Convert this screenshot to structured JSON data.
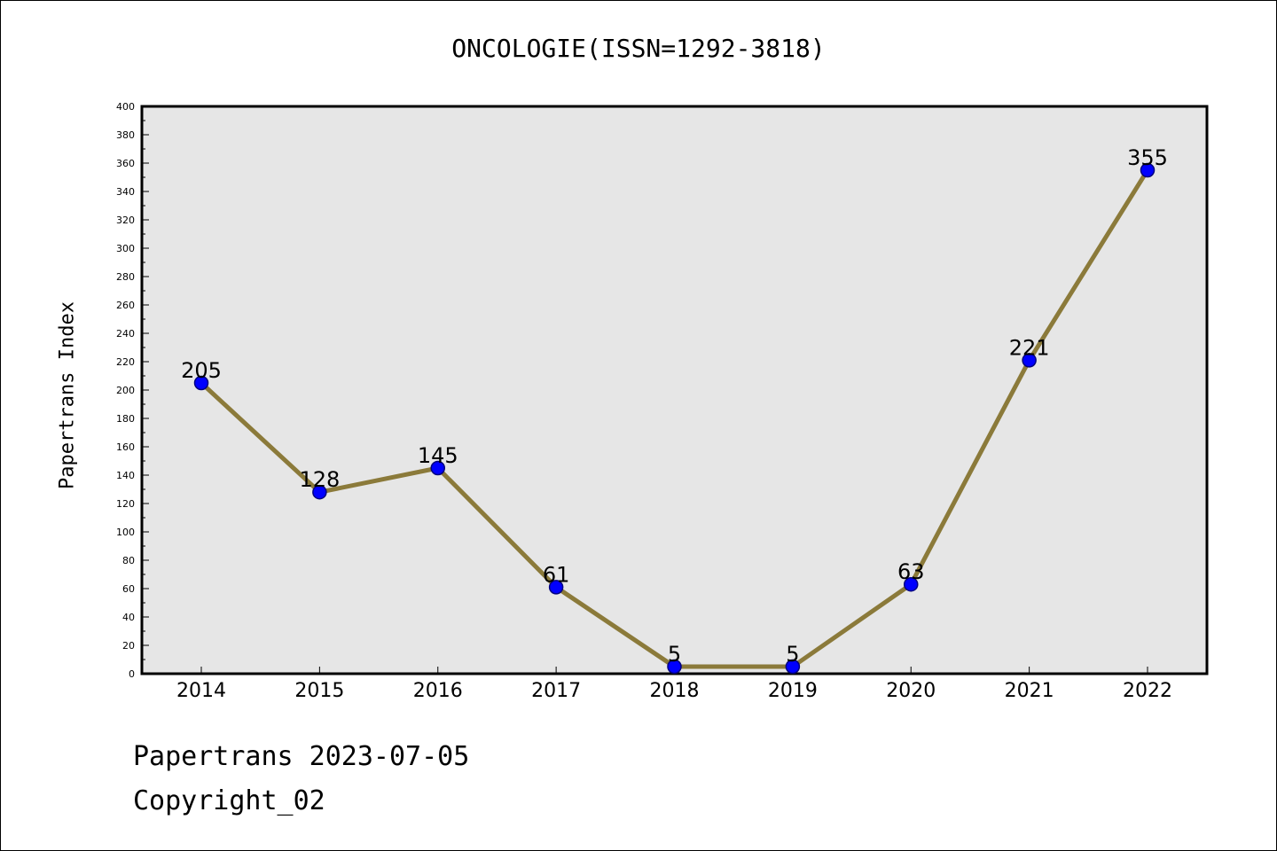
{
  "chart_data": {
    "type": "line",
    "title": "ONCOLOGIE(ISSN=1292-3818)",
    "xlabel": "",
    "ylabel": "Papertrans Index",
    "categories": [
      "2014",
      "2015",
      "2016",
      "2017",
      "2018",
      "2019",
      "2020",
      "2021",
      "2022"
    ],
    "values": [
      205,
      128,
      145,
      61,
      5,
      5,
      63,
      221,
      355
    ],
    "data_labels": [
      "205",
      "128",
      "145",
      "61",
      "5",
      "5",
      "63",
      "221",
      "355"
    ],
    "ylim": [
      0,
      400
    ],
    "y_ticks": [
      0,
      20,
      40,
      60,
      80,
      100,
      120,
      140,
      160,
      180,
      200,
      220,
      240,
      260,
      280,
      300,
      320,
      340,
      360,
      380,
      400
    ],
    "grid": false,
    "colors": {
      "line": "#8b7a3a",
      "marker_fill": "#0000ff",
      "marker_edge": "#000080",
      "plot_bg": "#e6e6e6"
    }
  },
  "footer": {
    "date_text": "Papertrans 2023-07-05",
    "copyright_text": "Copyright_02"
  }
}
